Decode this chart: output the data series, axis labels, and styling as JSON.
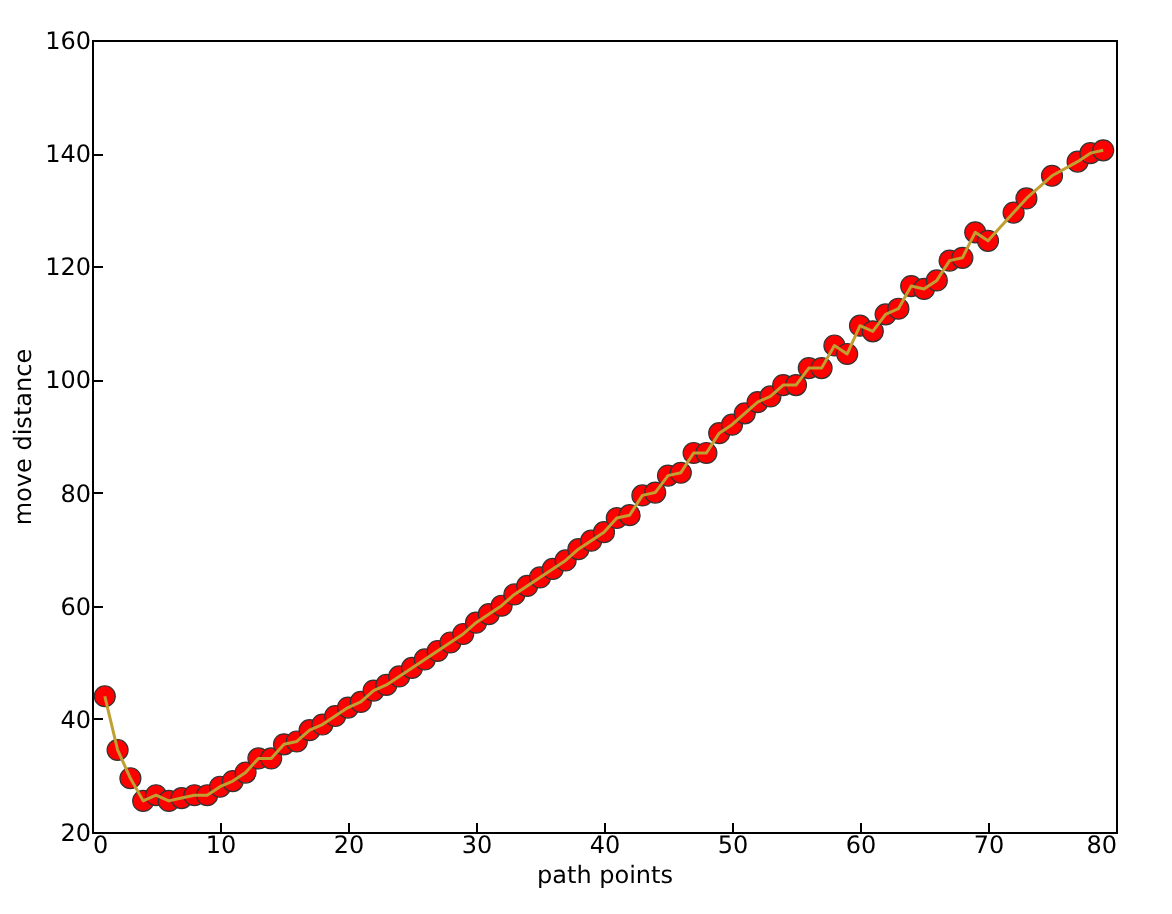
{
  "chart_data": {
    "type": "scatter",
    "xlabel": "path points",
    "ylabel": "move distance",
    "x": [
      1,
      2,
      3,
      4,
      5,
      6,
      7,
      8,
      9,
      10,
      11,
      12,
      13,
      14,
      15,
      16,
      17,
      18,
      19,
      20,
      21,
      22,
      23,
      24,
      25,
      26,
      27,
      28,
      29,
      30,
      31,
      32,
      33,
      34,
      35,
      36,
      37,
      38,
      39,
      40,
      41,
      42,
      43,
      44,
      45,
      46,
      47,
      48,
      49,
      50,
      51,
      52,
      53,
      54,
      55,
      56,
      57,
      58,
      59,
      60,
      61,
      62,
      63,
      64,
      65,
      66,
      67,
      68,
      69,
      70,
      72,
      73,
      75,
      77,
      78,
      79
    ],
    "series": [
      {
        "color": "#ff0000",
        "values": [
          44,
          34.5,
          29.5,
          25.5,
          26.5,
          25.5,
          26,
          26.5,
          26.5,
          28,
          29,
          30.5,
          33,
          33,
          35.5,
          36,
          38,
          39,
          40.5,
          42,
          43,
          45,
          46,
          47.5,
          49,
          50.5,
          52,
          53.5,
          55,
          57,
          58.5,
          60,
          62,
          63.5,
          65,
          66.5,
          68,
          70,
          71.5,
          73,
          75.5,
          76,
          79.5,
          80,
          83,
          83.5,
          87,
          87,
          90.5,
          92,
          94,
          96,
          97,
          99,
          99,
          102,
          102,
          106,
          104.5,
          109.5,
          108.5,
          111.5,
          112.5,
          116.5,
          116,
          117.5,
          121,
          121.5,
          126,
          124.5,
          129.5,
          132,
          136,
          138.5,
          140,
          140.5
        ]
      },
      {
        "type": "line",
        "marker": "none",
        "color": "#bfa030",
        "values": [
          44,
          34.5,
          29.5,
          25.5,
          26.5,
          25.5,
          26,
          26.5,
          26.5,
          28,
          29,
          30.5,
          33,
          33,
          35.5,
          36,
          38,
          39,
          40.5,
          42,
          43,
          45,
          46,
          47.5,
          49,
          50.5,
          52,
          53.5,
          55,
          57,
          58.5,
          60,
          62,
          63.5,
          65,
          66.5,
          68,
          70,
          71.5,
          73,
          75.5,
          76,
          79.5,
          80,
          83,
          83.5,
          87,
          87,
          90.5,
          92,
          94,
          96,
          97,
          99,
          99,
          102,
          102,
          106,
          104.5,
          109.5,
          108.5,
          111.5,
          112.5,
          116.5,
          116,
          117.5,
          121,
          121.5,
          126,
          124.5,
          129.5,
          132,
          136,
          138.5,
          140,
          140.5
        ]
      }
    ],
    "marker": "circle",
    "grid": false,
    "xlim": [
      0,
      80
    ],
    "xticks": [
      0,
      10,
      20,
      30,
      40,
      50,
      60,
      70,
      80
    ],
    "ylim": [
      20,
      160
    ],
    "yticks": [
      20,
      40,
      60,
      80,
      100,
      120,
      140,
      160
    ]
  }
}
